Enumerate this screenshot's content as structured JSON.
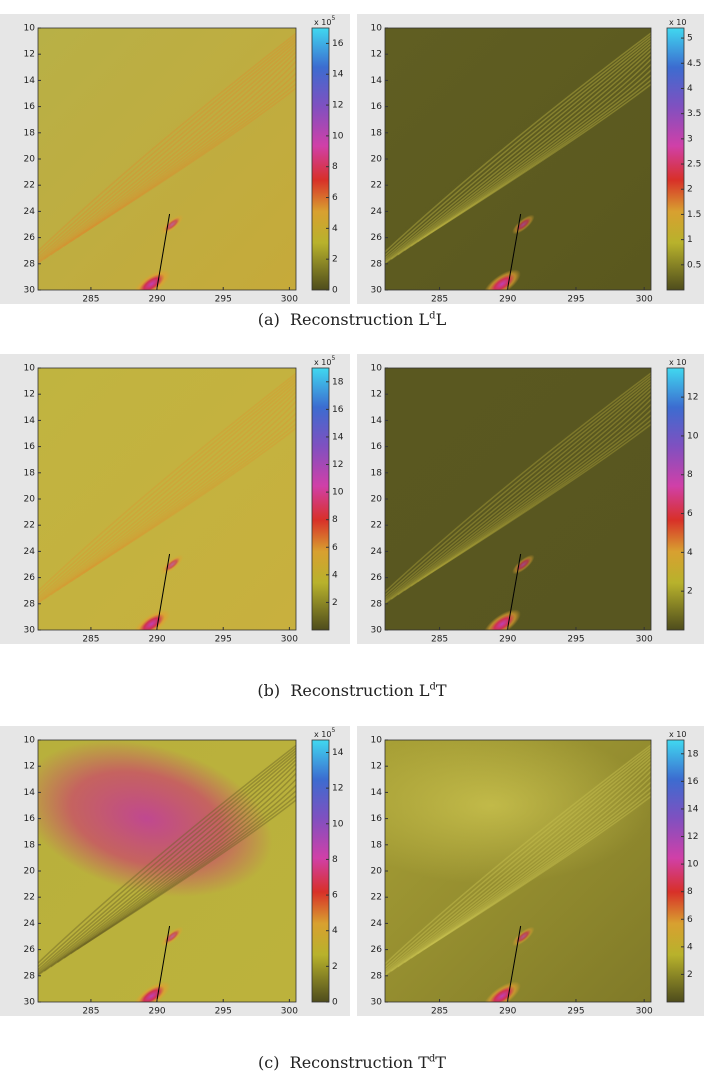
{
  "figures": [
    {
      "caption": {
        "label": "(a)",
        "pre": "Reconstruction L",
        "sup": "d",
        "post": "L"
      },
      "panels": [
        {
          "xlim": [
            281,
            300.5
          ],
          "xticks": [
            285,
            290,
            295,
            300
          ],
          "ylim": [
            10,
            30
          ],
          "yticks": [
            10,
            12,
            14,
            16,
            18,
            20,
            22,
            24,
            26,
            28,
            30
          ],
          "clim": [
            0,
            17
          ],
          "cticks": [
            0,
            2,
            4,
            6,
            8,
            10,
            12,
            14,
            16
          ],
          "scale": {
            "base": "x 10",
            "exp": "5"
          }
        },
        {
          "xlim": [
            281,
            300.5
          ],
          "xticks": [
            285,
            290,
            295,
            300
          ],
          "ylim": [
            10,
            30
          ],
          "yticks": [
            10,
            12,
            14,
            16,
            18,
            20,
            22,
            24,
            26,
            28,
            30
          ],
          "clim": [
            0,
            5.2
          ],
          "cticks": [
            0.5,
            1,
            1.5,
            2,
            2.5,
            3,
            3.5,
            4,
            4.5,
            5
          ],
          "scale": {
            "base": "x 10"
          }
        }
      ]
    },
    {
      "caption": {
        "label": "(b)",
        "pre": "Reconstruction L",
        "sup": "d",
        "post": "T"
      },
      "panels": [
        {
          "xlim": [
            281,
            300.5
          ],
          "xticks": [
            285,
            290,
            295,
            300
          ],
          "ylim": [
            10,
            30
          ],
          "yticks": [
            10,
            12,
            14,
            16,
            18,
            20,
            22,
            24,
            26,
            28,
            30
          ],
          "clim": [
            0,
            19
          ],
          "cticks": [
            2,
            4,
            6,
            8,
            10,
            12,
            14,
            16,
            18
          ],
          "scale": {
            "base": "x 10",
            "exp": "5"
          }
        },
        {
          "xlim": [
            281,
            300.5
          ],
          "xticks": [
            285,
            290,
            295,
            300
          ],
          "ylim": [
            10,
            30
          ],
          "yticks": [
            10,
            12,
            14,
            16,
            18,
            20,
            22,
            24,
            26,
            28,
            30
          ],
          "clim": [
            0,
            13.5
          ],
          "cticks": [
            2,
            4,
            6,
            8,
            10,
            12
          ],
          "scale": {
            "base": "x 10"
          }
        }
      ]
    },
    {
      "caption": {
        "label": "(c)",
        "pre": "Reconstruction T",
        "sup": "d",
        "post": "T"
      },
      "panels": [
        {
          "xlim": [
            281,
            300.5
          ],
          "xticks": [
            285,
            290,
            295,
            300
          ],
          "ylim": [
            10,
            30
          ],
          "yticks": [
            10,
            12,
            14,
            16,
            18,
            20,
            22,
            24,
            26,
            28,
            30
          ],
          "clim": [
            0,
            14.7
          ],
          "cticks": [
            0,
            2,
            4,
            6,
            8,
            10,
            12,
            14
          ],
          "scale": {
            "base": "x 10",
            "exp": "5"
          }
        },
        {
          "xlim": [
            281,
            300.5
          ],
          "xticks": [
            285,
            290,
            295,
            300
          ],
          "ylim": [
            10,
            30
          ],
          "yticks": [
            10,
            12,
            14,
            16,
            18,
            20,
            22,
            24,
            26,
            28,
            30
          ],
          "clim": [
            0,
            19
          ],
          "cticks": [
            2,
            4,
            6,
            8,
            10,
            12,
            14,
            16,
            18
          ],
          "scale": {
            "base": "x 10"
          }
        }
      ]
    }
  ]
}
